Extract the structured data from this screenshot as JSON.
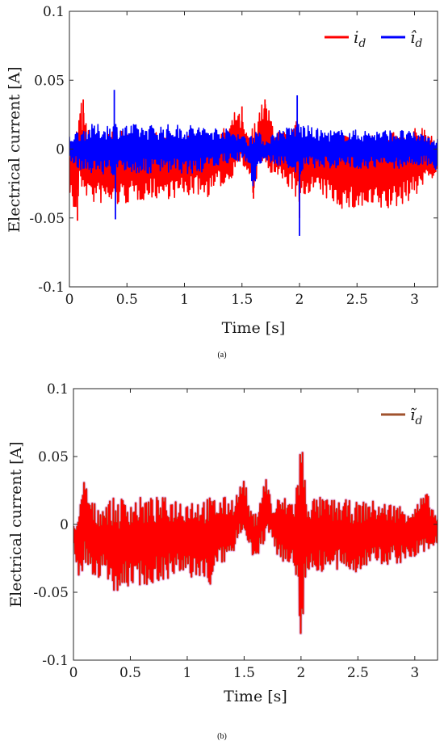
{
  "chart_data": [
    {
      "type": "line",
      "caption": "(a)",
      "xlabel": "Time [s]",
      "ylabel": "Electrical current [A]",
      "xlim": [
        0,
        3.2
      ],
      "ylim": [
        -0.1,
        0.1
      ],
      "xticks": [
        "0",
        "0.5",
        "1",
        "1.5",
        "2",
        "2.5",
        "3"
      ],
      "yticks": [
        "-0.1",
        "-0.05",
        "0",
        "0.05",
        "0.1"
      ],
      "grid": false,
      "legend_position": "top-right",
      "series": [
        {
          "name": "i_d",
          "legend_label": "i",
          "legend_sub": "d",
          "color": "#ff0000",
          "x": [
            0,
            0.05,
            0.1,
            0.15,
            0.2,
            0.3,
            0.4,
            0.5,
            0.6,
            0.7,
            0.8,
            0.9,
            1.0,
            1.1,
            1.2,
            1.3,
            1.4,
            1.45,
            1.5,
            1.55,
            1.6,
            1.65,
            1.7,
            1.75,
            1.8,
            1.9,
            1.95,
            2.0,
            2.05,
            2.1,
            2.2,
            2.3,
            2.4,
            2.5,
            2.6,
            2.7,
            2.8,
            2.9,
            3.0,
            3.1,
            3.2
          ],
          "upper": [
            0.005,
            0.01,
            0.036,
            0.018,
            0.012,
            0.012,
            0.014,
            0.012,
            0.012,
            0.012,
            0.012,
            0.012,
            0.012,
            0.012,
            0.012,
            0.012,
            0.02,
            0.03,
            0.022,
            0.01,
            0.018,
            0.03,
            0.036,
            0.025,
            0.015,
            0.012,
            0.015,
            0.028,
            0.012,
            0.01,
            0.01,
            0.01,
            0.012,
            0.012,
            0.012,
            0.012,
            0.012,
            0.012,
            0.015,
            0.02,
            0.0
          ],
          "lower": [
            -0.03,
            -0.052,
            -0.03,
            -0.035,
            -0.04,
            -0.04,
            -0.042,
            -0.04,
            -0.038,
            -0.036,
            -0.036,
            -0.036,
            -0.035,
            -0.033,
            -0.035,
            -0.028,
            -0.025,
            -0.01,
            -0.012,
            -0.02,
            -0.036,
            -0.01,
            -0.015,
            -0.02,
            -0.022,
            -0.028,
            -0.03,
            -0.05,
            -0.035,
            -0.03,
            -0.035,
            -0.04,
            -0.045,
            -0.045,
            -0.045,
            -0.045,
            -0.045,
            -0.04,
            -0.035,
            -0.025,
            -0.018
          ],
          "peaks": [
            {
              "x": 0.07,
              "y": -0.052
            },
            {
              "x": 0.12,
              "y": 0.036
            },
            {
              "x": 1.5,
              "y": 0.031
            },
            {
              "x": 1.6,
              "y": -0.036
            },
            {
              "x": 1.7,
              "y": 0.036
            },
            {
              "x": 2.0,
              "y": -0.05
            }
          ]
        },
        {
          "name": "î_d",
          "legend_label": "î",
          "legend_sub": "d",
          "color": "#0000ff",
          "x": [
            0,
            0.1,
            0.2,
            0.3,
            0.4,
            0.5,
            0.6,
            0.7,
            0.8,
            0.9,
            1.0,
            1.1,
            1.2,
            1.3,
            1.4,
            1.5,
            1.55,
            1.6,
            1.65,
            1.7,
            1.8,
            1.9,
            2.0,
            2.1,
            2.2,
            2.3,
            2.4,
            2.5,
            2.6,
            2.7,
            2.8,
            2.9,
            3.0,
            3.1,
            3.2
          ],
          "upper": [
            0.01,
            0.015,
            0.018,
            0.018,
            0.02,
            0.018,
            0.018,
            0.018,
            0.018,
            0.018,
            0.018,
            0.018,
            0.016,
            0.016,
            0.014,
            0.012,
            0.006,
            0.02,
            0.012,
            0.006,
            0.014,
            0.016,
            0.02,
            0.016,
            0.014,
            0.014,
            0.014,
            0.014,
            0.014,
            0.014,
            0.014,
            0.014,
            0.012,
            0.012,
            0.008
          ],
          "lower": [
            -0.01,
            -0.015,
            -0.018,
            -0.018,
            -0.02,
            -0.018,
            -0.018,
            -0.018,
            -0.018,
            -0.018,
            -0.018,
            -0.018,
            -0.016,
            -0.012,
            -0.01,
            -0.008,
            -0.01,
            -0.03,
            -0.012,
            -0.008,
            -0.012,
            -0.014,
            -0.02,
            -0.014,
            -0.014,
            -0.014,
            -0.014,
            -0.014,
            -0.014,
            -0.014,
            -0.014,
            -0.014,
            -0.012,
            -0.012,
            -0.016
          ],
          "peaks": [
            {
              "x": 0.39,
              "y": 0.043
            },
            {
              "x": 0.4,
              "y": -0.051
            },
            {
              "x": 1.98,
              "y": 0.039
            },
            {
              "x": 2.0,
              "y": -0.063
            }
          ]
        }
      ]
    },
    {
      "type": "line",
      "caption": "(b)",
      "xlabel": "Time [s]",
      "ylabel": "Electrical current [A]",
      "xlim": [
        0,
        3.2
      ],
      "ylim": [
        -0.1,
        0.1
      ],
      "xticks": [
        "0",
        "0.5",
        "1",
        "1.5",
        "2",
        "2.5",
        "3"
      ],
      "yticks": [
        "-0.1",
        "-0.05",
        "0",
        "0.05",
        "0.1"
      ],
      "grid": false,
      "legend_position": "top-right",
      "series": [
        {
          "name": "ĩ_d",
          "legend_label": "ĩ",
          "legend_sub": "d",
          "color": "#ff0000",
          "edge_color": "#a0522d",
          "x": [
            0,
            0.05,
            0.1,
            0.15,
            0.2,
            0.3,
            0.4,
            0.5,
            0.6,
            0.7,
            0.8,
            0.9,
            1.0,
            1.1,
            1.2,
            1.3,
            1.4,
            1.45,
            1.5,
            1.55,
            1.6,
            1.65,
            1.7,
            1.75,
            1.8,
            1.9,
            1.95,
            2.0,
            2.05,
            2.1,
            2.2,
            2.3,
            2.4,
            2.5,
            2.6,
            2.7,
            2.8,
            2.9,
            3.0,
            3.1,
            3.2
          ],
          "upper": [
            0.0,
            0.01,
            0.037,
            0.018,
            0.015,
            0.018,
            0.02,
            0.02,
            0.02,
            0.02,
            0.02,
            0.02,
            0.02,
            0.02,
            0.02,
            0.02,
            0.02,
            0.025,
            0.036,
            0.01,
            0.008,
            0.025,
            0.037,
            0.01,
            0.02,
            0.02,
            0.02,
            0.073,
            0.02,
            0.02,
            0.02,
            0.018,
            0.018,
            0.016,
            0.018,
            0.016,
            0.016,
            0.014,
            0.014,
            0.024,
            0.005
          ],
          "lower": [
            -0.01,
            -0.048,
            -0.03,
            -0.035,
            -0.04,
            -0.04,
            -0.055,
            -0.045,
            -0.045,
            -0.045,
            -0.04,
            -0.04,
            -0.04,
            -0.04,
            -0.045,
            -0.03,
            -0.025,
            -0.01,
            -0.005,
            -0.015,
            -0.03,
            -0.02,
            -0.01,
            -0.01,
            -0.025,
            -0.03,
            -0.035,
            -0.087,
            -0.035,
            -0.035,
            -0.035,
            -0.035,
            -0.035,
            -0.035,
            -0.03,
            -0.03,
            -0.03,
            -0.028,
            -0.025,
            -0.02,
            -0.015
          ]
        }
      ]
    }
  ]
}
